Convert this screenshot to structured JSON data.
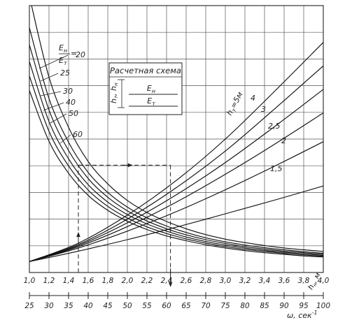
{
  "chart_data": {
    "type": "line",
    "title": "",
    "x_axis_top": {
      "label": "h_н, м",
      "label_main": "h",
      "label_sub": "н",
      "label_unit": ", м",
      "range": [
        1.0,
        4.0
      ],
      "ticks": [
        "1,0",
        "1,2",
        "1,4",
        "1,6",
        "1,8",
        "2,0",
        "2,2",
        "2,4",
        "2,6",
        "2,8",
        "3,0",
        "3,2",
        "3,4",
        "3,6",
        "3,8",
        "4,0"
      ]
    },
    "x_axis_bottom": {
      "label": "ω, сек⁻¹",
      "label_main": "ω, сек",
      "label_sup": "-1",
      "range": [
        25,
        100
      ],
      "ticks": [
        "25",
        "30",
        "35",
        "40",
        "45",
        "50",
        "55",
        "60",
        "65",
        "70",
        "75",
        "80",
        "85",
        "90",
        "95",
        "100"
      ]
    },
    "y_axis": {
      "ylim": [
        0,
        1
      ],
      "tick_labels_shown": false
    },
    "grid": true,
    "decreasing_family": {
      "parameter": "E_н / E_т",
      "param_label": {
        "num_main": "E",
        "num_sub": "н",
        "den_main": "E",
        "den_sub": "т",
        "eq": "="
      },
      "series": [
        {
          "name": "20",
          "x": [
            1.0,
            1.2,
            1.4,
            1.6,
            1.8,
            2.0,
            2.2,
            2.4,
            2.6,
            2.8,
            3.0,
            3.2,
            3.4,
            3.6,
            3.8,
            4.0
          ],
          "y": [
            1.035,
            0.732,
            0.544,
            0.416,
            0.332,
            0.27,
            0.225,
            0.191,
            0.164,
            0.142,
            0.125,
            0.112,
            0.101,
            0.092,
            0.085,
            0.079
          ]
        },
        {
          "name": "25",
          "x": [
            1.0,
            1.2,
            1.4,
            1.6,
            1.8,
            2.0,
            2.2,
            2.4,
            2.6,
            2.8,
            3.0,
            3.2,
            3.4,
            3.6,
            3.8,
            4.0
          ],
          "y": [
            0.917,
            0.652,
            0.488,
            0.375,
            0.3,
            0.245,
            0.205,
            0.174,
            0.15,
            0.13,
            0.115,
            0.103,
            0.093,
            0.085,
            0.078,
            0.072
          ]
        },
        {
          "name": "30",
          "x": [
            1.0,
            1.2,
            1.4,
            1.6,
            1.8,
            2.0,
            2.2,
            2.4,
            2.6,
            2.8,
            3.0,
            3.2,
            3.4,
            3.6,
            3.8,
            4.0
          ],
          "y": [
            0.853,
            0.609,
            0.457,
            0.352,
            0.282,
            0.231,
            0.193,
            0.164,
            0.141,
            0.123,
            0.109,
            0.097,
            0.088,
            0.08,
            0.074,
            0.068
          ]
        },
        {
          "name": "40",
          "x": [
            1.0,
            1.2,
            1.4,
            1.6,
            1.8,
            2.0,
            2.2,
            2.4,
            2.6,
            2.8,
            3.0,
            3.2,
            3.4,
            3.6,
            3.8,
            4.0
          ],
          "y": [
            0.79,
            0.566,
            0.426,
            0.329,
            0.264,
            0.217,
            0.182,
            0.155,
            0.133,
            0.116,
            0.103,
            0.092,
            0.083,
            0.076,
            0.07,
            0.064
          ]
        },
        {
          "name": "50",
          "x": [
            1.0,
            1.2,
            1.4,
            1.6,
            1.8,
            2.0,
            2.2,
            2.4,
            2.6,
            2.8,
            3.0,
            3.2,
            3.4,
            3.6,
            3.8,
            4.0
          ],
          "y": [
            0.736,
            0.529,
            0.399,
            0.309,
            0.248,
            0.204,
            0.171,
            0.146,
            0.126,
            0.11,
            0.097,
            0.087,
            0.079,
            0.072,
            0.066,
            0.061
          ]
        },
        {
          "name": "60",
          "x": [
            1.0,
            1.2,
            1.4,
            1.6,
            1.8,
            2.0,
            2.2,
            2.4,
            2.6,
            2.8,
            3.0,
            3.2,
            3.4,
            3.6,
            3.8,
            4.0
          ],
          "y": [
            0.682,
            0.492,
            0.372,
            0.289,
            0.233,
            0.192,
            0.161,
            0.137,
            0.119,
            0.104,
            0.092,
            0.082,
            0.074,
            0.068,
            0.062,
            0.058
          ]
        }
      ]
    },
    "increasing_family": {
      "parameter": "h_т, м",
      "series": [
        {
          "name": "h_т=5м",
          "label_main": "h",
          "label_sub": "т",
          "label_rest": "=5м",
          "x": [
            1.0,
            1.5,
            2.0,
            2.5,
            3.0,
            3.5,
            4.0
          ],
          "y": [
            0.041,
            0.11,
            0.215,
            0.345,
            0.5,
            0.678,
            0.862
          ]
        },
        {
          "name": "4",
          "x": [
            1.0,
            1.5,
            2.0,
            2.5,
            3.0,
            3.5,
            4.0
          ],
          "y": [
            0.041,
            0.105,
            0.2,
            0.318,
            0.455,
            0.612,
            0.774
          ]
        },
        {
          "name": "3",
          "x": [
            1.0,
            1.5,
            2.0,
            2.5,
            3.0,
            3.5,
            4.0
          ],
          "y": [
            0.041,
            0.101,
            0.186,
            0.291,
            0.412,
            0.546,
            0.686
          ]
        },
        {
          "name": "2,5",
          "x": [
            1.0,
            1.5,
            2.0,
            2.5,
            3.0,
            3.5,
            4.0
          ],
          "y": [
            0.041,
            0.097,
            0.172,
            0.264,
            0.368,
            0.48,
            0.598
          ]
        },
        {
          "name": "2",
          "x": [
            1.0,
            1.5,
            2.0,
            2.5,
            3.0,
            3.5,
            4.0
          ],
          "y": [
            0.041,
            0.092,
            0.155,
            0.228,
            0.31,
            0.398,
            0.49
          ]
        },
        {
          "name": "1,5",
          "x": [
            1.0,
            1.5,
            2.0,
            2.5,
            3.0,
            3.5,
            4.0
          ],
          "y": [
            0.041,
            0.08,
            0.123,
            0.17,
            0.22,
            0.271,
            0.324
          ]
        }
      ]
    },
    "annotations": {
      "box_title": "Расчетная схема",
      "box_h_label": "h_т, h_н",
      "box_h_main_1": "h",
      "box_h_sub_1": "т",
      "box_h_main_2": "h",
      "box_h_sub_2": "н",
      "box_top_layer": {
        "main": "E",
        "sub": "н"
      },
      "box_bottom_layer": {
        "main": "E",
        "sub": "т"
      },
      "example_path": {
        "start_x": 1.5,
        "start_y": 0.0,
        "turn_y": 0.402,
        "end_x": 2.44,
        "arrow_up_at_y": 0.15,
        "arrow_right_at_x": 2.05,
        "result_x": 2.44
      }
    }
  }
}
